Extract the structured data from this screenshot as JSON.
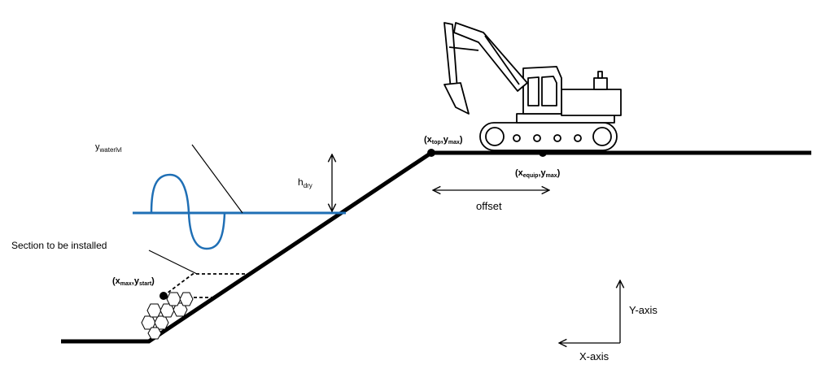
{
  "labels": {
    "y_waterlvl": {
      "main": "y",
      "sub": "waterlvl"
    },
    "h_dry": {
      "main": "h",
      "sub": "dry"
    },
    "section": "Section to be installed",
    "x_max_y_start": {
      "open": "(x",
      "sub1": "max",
      "sep": ",y",
      "sub2": "start",
      "close": ")"
    },
    "x_top_y_max": {
      "open": "(x",
      "sub1": "top",
      "sep": ",y",
      "sub2": "max",
      "close": ")"
    },
    "x_equip_y_max": {
      "open": "(x",
      "sub1": "equip",
      "sep": ",y",
      "sub2": "max",
      "close": ")"
    },
    "offset": "offset",
    "y_axis": "Y-axis",
    "x_axis": "X-axis"
  },
  "colors": {
    "ground": "#000000",
    "water": "#1f6fb5",
    "text": "#000000"
  },
  "icons": {
    "excavator": "excavator-icon",
    "wave": "wave-icon"
  }
}
